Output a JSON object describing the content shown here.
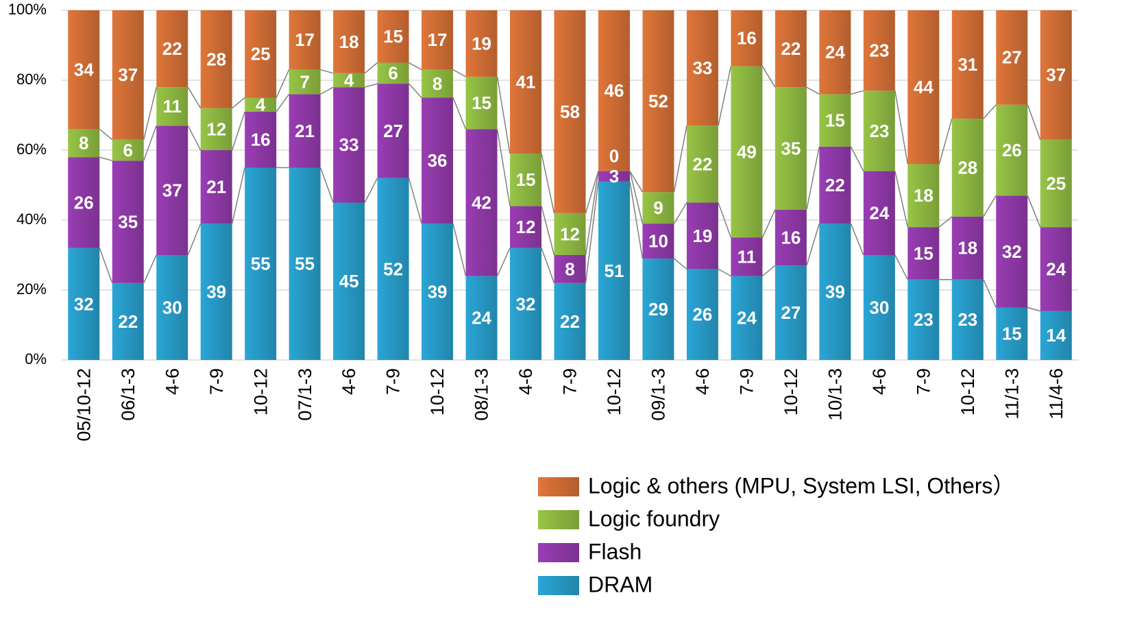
{
  "chart_data": {
    "type": "stacked_bar",
    "categories": [
      "05/10-12",
      "06/1-3",
      "4-6",
      "7-9",
      "10-12",
      "07/1-3",
      "4-6",
      "7-9",
      "10-12",
      "08/1-3",
      "4-6",
      "7-9",
      "10-12",
      "09/1-3",
      "4-6",
      "7-9",
      "10-12",
      "10/1-3",
      "4-6",
      "7-9",
      "10-12",
      "11/1-3",
      "11/4-6"
    ],
    "series": [
      {
        "name": "DRAM",
        "color": "#2aa6d6",
        "values": [
          32,
          22,
          30,
          39,
          55,
          55,
          45,
          52,
          39,
          24,
          32,
          22,
          51,
          29,
          26,
          24,
          27,
          39,
          30,
          23,
          23,
          15,
          14
        ]
      },
      {
        "name": "Flash",
        "color": "#9a3db4",
        "values": [
          26,
          35,
          37,
          21,
          16,
          21,
          33,
          27,
          36,
          42,
          12,
          8,
          3,
          10,
          19,
          11,
          16,
          22,
          24,
          15,
          18,
          32,
          24
        ]
      },
      {
        "name": "Logic foundry",
        "color": "#97c546",
        "values": [
          8,
          6,
          11,
          12,
          4,
          7,
          4,
          6,
          8,
          15,
          15,
          12,
          0,
          9,
          22,
          49,
          35,
          15,
          23,
          18,
          28,
          26,
          25
        ]
      },
      {
        "name": "Logic & others (MPU, System LSI, Others）",
        "color": "#e0763a",
        "values": [
          34,
          37,
          22,
          28,
          25,
          17,
          18,
          15,
          17,
          19,
          41,
          58,
          46,
          52,
          33,
          16,
          22,
          24,
          23,
          44,
          31,
          27,
          37
        ]
      }
    ],
    "ylim": [
      0,
      100
    ],
    "yticks": [
      {
        "value": 0,
        "label": "0%"
      },
      {
        "value": 20,
        "label": "20%"
      },
      {
        "value": 40,
        "label": "40%"
      },
      {
        "value": 60,
        "label": "60%"
      },
      {
        "value": 80,
        "label": "80%"
      },
      {
        "value": 100,
        "label": "100%"
      }
    ],
    "grid": true
  }
}
